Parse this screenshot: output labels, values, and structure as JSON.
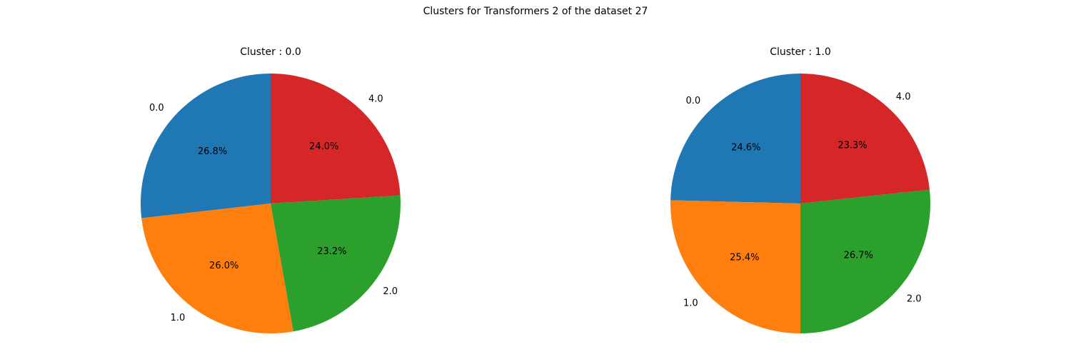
{
  "figure": {
    "suptitle": "Clusters for Transformers 2 of the dataset 27"
  },
  "chart_data": [
    {
      "type": "pie",
      "title": "Cluster : 0.0",
      "labels": [
        "0.0",
        "1.0",
        "2.0",
        "4.0"
      ],
      "values": [
        26.8,
        26.0,
        23.2,
        24.0
      ],
      "autopct": [
        "26.8%",
        "26.0%",
        "23.2%",
        "24.0%"
      ],
      "colors": [
        "#1f77b4",
        "#ff7f0e",
        "#2ca02c",
        "#d62728"
      ],
      "startangle": 90,
      "direction": "counterclockwise"
    },
    {
      "type": "pie",
      "title": "Cluster : 1.0",
      "labels": [
        "0.0",
        "1.0",
        "2.0",
        "4.0"
      ],
      "values": [
        24.6,
        25.4,
        26.7,
        23.3
      ],
      "autopct": [
        "24.6%",
        "25.4%",
        "26.7%",
        "23.3%"
      ],
      "colors": [
        "#1f77b4",
        "#ff7f0e",
        "#2ca02c",
        "#d62728"
      ],
      "startangle": 90,
      "direction": "counterclockwise"
    }
  ]
}
